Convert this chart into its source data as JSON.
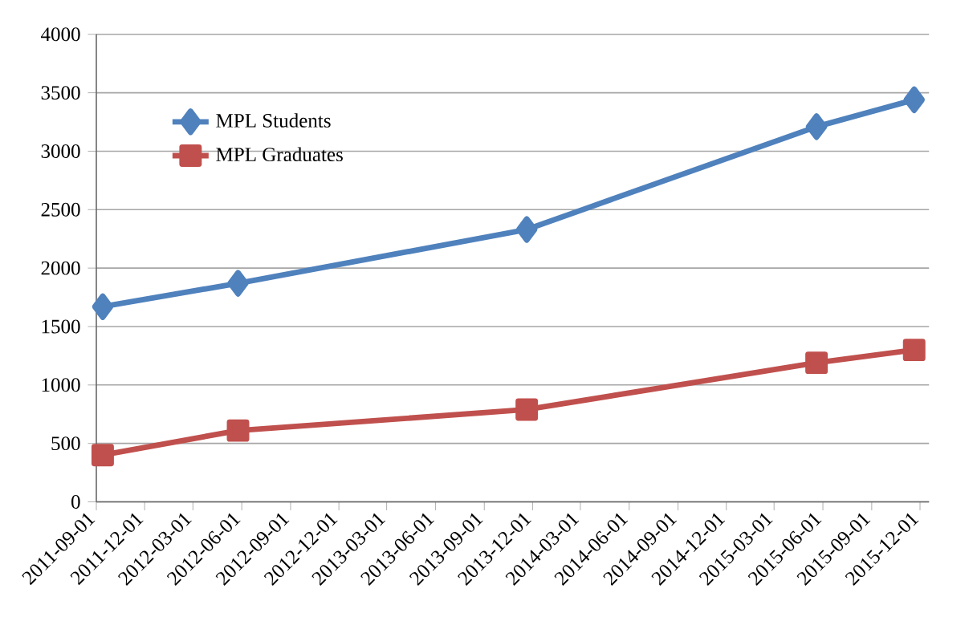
{
  "chart_data": {
    "type": "line",
    "x": [
      "2011-09-13",
      "2012-05-25",
      "2013-11-20",
      "2015-05-20",
      "2015-11-20"
    ],
    "series": [
      {
        "name": "MPL Students",
        "color": "#4f81bd",
        "marker": "diamond",
        "values": [
          1670,
          1870,
          2330,
          3210,
          3440
        ]
      },
      {
        "name": "MPL Graduates",
        "color": "#c0504d",
        "marker": "square",
        "values": [
          400,
          610,
          790,
          1190,
          1300
        ]
      }
    ],
    "xlim": [
      "2011-09-01",
      "2015-12-18"
    ],
    "xticks": [
      "2011-09-01",
      "2011-12-01",
      "2012-03-01",
      "2012-06-01",
      "2012-09-01",
      "2012-12-01",
      "2013-03-01",
      "2013-06-01",
      "2013-09-01",
      "2013-12-01",
      "2014-03-01",
      "2014-06-01",
      "2014-09-01",
      "2014-12-01",
      "2015-03-01",
      "2015-06-01",
      "2015-09-01",
      "2015-12-01"
    ],
    "ylim": [
      0,
      4000
    ],
    "yticks": [
      0,
      500,
      1000,
      1500,
      2000,
      2500,
      3000,
      3500,
      4000
    ],
    "grid": "y",
    "legend": "top left",
    "line_style": "solid"
  }
}
